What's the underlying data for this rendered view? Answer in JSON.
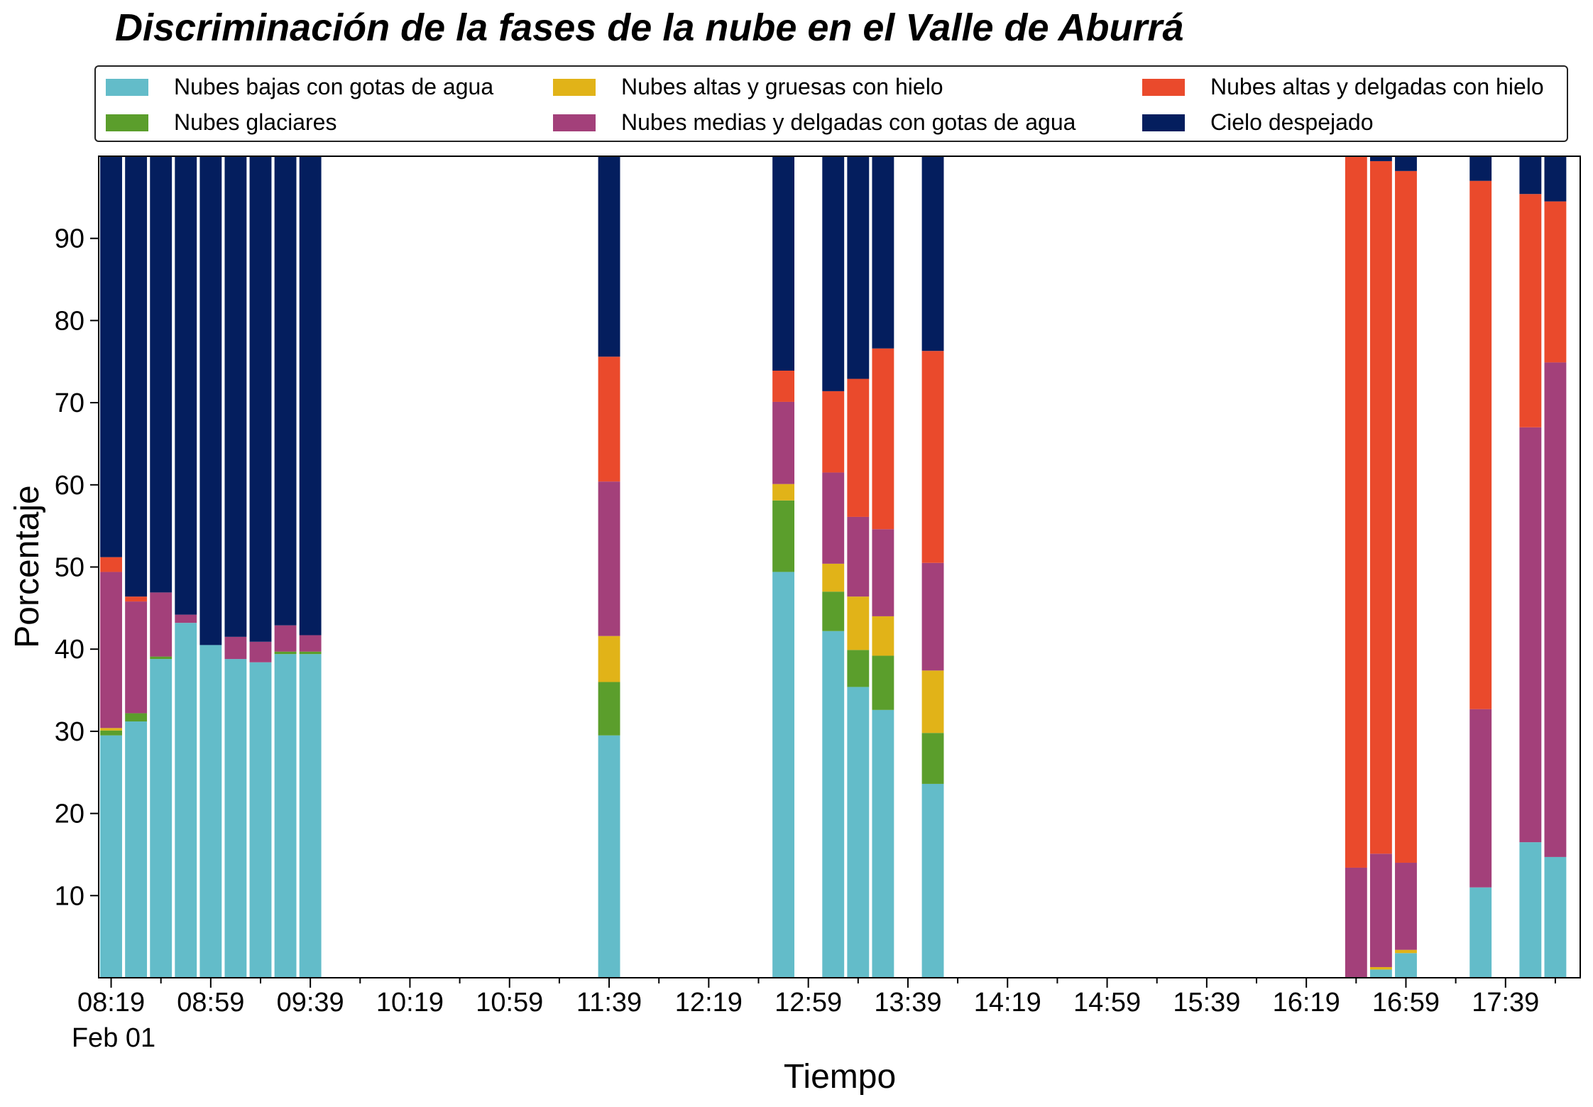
{
  "chart_data": {
    "type": "bar",
    "stacked": true,
    "title": "Discriminación de la fases de la nube en el Valle de Aburrá",
    "xlabel": "Tiempo",
    "ylabel": "Porcentaje",
    "ylim": [
      0,
      100
    ],
    "yticks": [
      10,
      20,
      30,
      40,
      50,
      60,
      70,
      80,
      90
    ],
    "x_major_ticks": [
      "08:19",
      "08:59",
      "09:39",
      "10:19",
      "10:59",
      "11:39",
      "12:19",
      "12:59",
      "13:39",
      "14:19",
      "14:59",
      "15:39",
      "16:19",
      "16:59",
      "17:39"
    ],
    "x_date_label": "Feb 01",
    "x_range_minutes": [
      494,
      1089
    ],
    "bar_step_minutes": 10,
    "grid": false,
    "legend_position": "top",
    "series_colors": [
      "#63bcc9",
      "#5b9e2c",
      "#e1b318",
      "#a3407a",
      "#ea4a2c",
      "#041e5e"
    ],
    "series": [
      {
        "name": "Nubes bajas con gotas de agua",
        "values": [
          29.5,
          31.2,
          38.8,
          43.2,
          40.5,
          38.8,
          38.4,
          39.4,
          39.4,
          29.5,
          49.4,
          42.2,
          35.4,
          32.6,
          23.6,
          0,
          1,
          3,
          11,
          16.5,
          14.7
        ]
      },
      {
        "name": "Nubes glaciares",
        "values": [
          0.6,
          1,
          0.3,
          0,
          0,
          0,
          0,
          0.3,
          0.3,
          6.5,
          8.7,
          4.8,
          4.5,
          6.6,
          6.2,
          0,
          0,
          0,
          0,
          0,
          0
        ]
      },
      {
        "name": "Nubes altas y gruesas con hielo",
        "values": [
          0.3,
          0,
          0,
          0,
          0,
          0,
          0,
          0,
          0,
          5.6,
          2,
          3.4,
          6.5,
          4.8,
          7.6,
          0,
          0.3,
          0.4,
          0,
          0,
          0
        ]
      },
      {
        "name": "Nubes medias y delgadas con gotas de agua",
        "values": [
          19,
          13.6,
          7.8,
          1,
          0,
          2.7,
          2.5,
          3.2,
          2,
          18.8,
          10,
          11.1,
          9.7,
          10.6,
          13.1,
          13.4,
          13.8,
          10.6,
          21.7,
          50.5,
          60.2
        ]
      },
      {
        "name": "Nubes altas y delgadas con hielo",
        "values": [
          1.8,
          0.6,
          0,
          0,
          0,
          0,
          0,
          0,
          0,
          15.2,
          3.8,
          9.9,
          16.8,
          22,
          25.8,
          86.6,
          84.3,
          84.2,
          64.3,
          28.4,
          19.6
        ]
      },
      {
        "name": "Cielo despejado",
        "values": [
          48.8,
          53.6,
          53.1,
          55.8,
          59.5,
          58.5,
          59.1,
          57.1,
          58.3,
          24.4,
          26.1,
          28.6,
          27.1,
          23.4,
          23.7,
          0,
          0.6,
          1.8,
          3,
          4.6,
          5.5
        ]
      }
    ],
    "x_minutes": [
      499,
      509,
      519,
      529,
      539,
      549,
      559,
      569,
      579,
      699,
      769,
      789,
      799,
      809,
      829,
      999,
      1009,
      1019,
      1049,
      1069,
      1079
    ],
    "x_labels": [
      "08:19",
      "08:29",
      "08:39",
      "08:49",
      "08:59",
      "09:09",
      "09:19",
      "09:29",
      "09:39",
      "11:39",
      "12:49",
      "13:09",
      "13:19",
      "13:29",
      "13:49",
      "16:39",
      "16:49",
      "16:59",
      "17:29",
      "17:49",
      "17:59"
    ]
  }
}
